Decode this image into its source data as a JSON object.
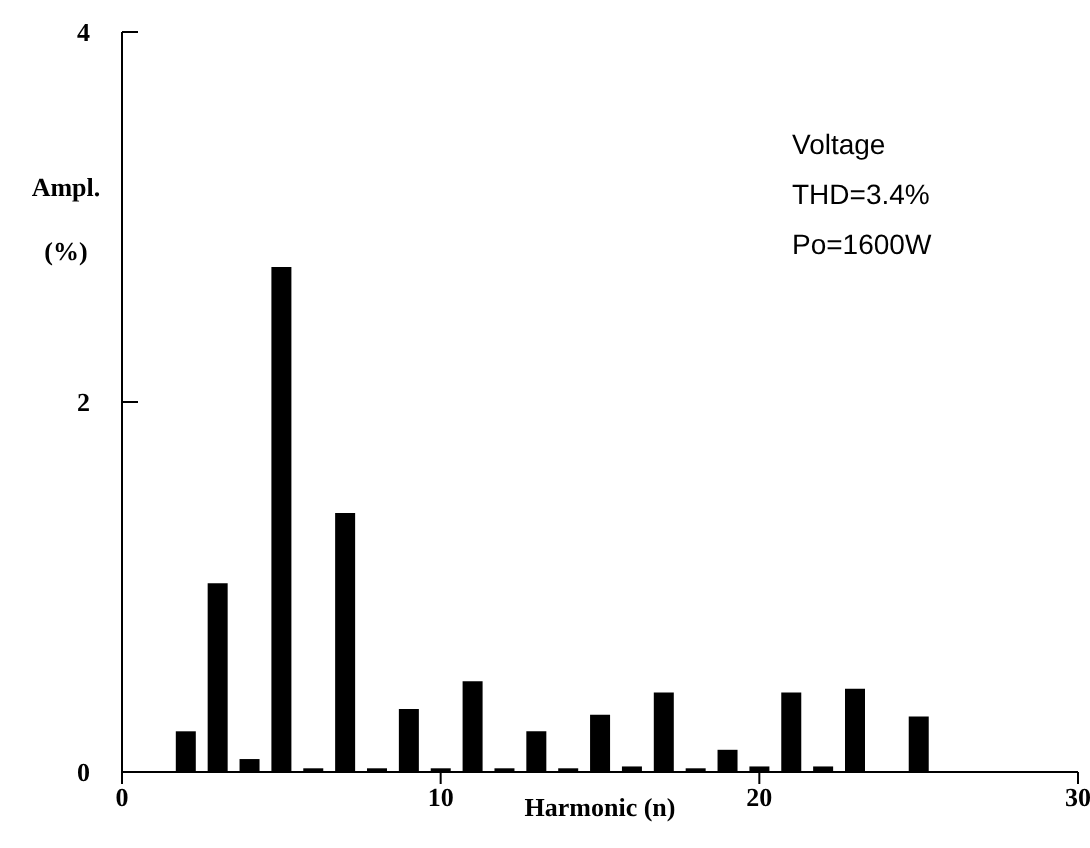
{
  "chart_data": {
    "type": "bar",
    "xlabel": "Harmonic (n)",
    "ylabel": "Ampl. (%)",
    "annotations": [
      "Voltage",
      "THD=3.4%",
      "Po=1600W"
    ],
    "x": [
      2,
      3,
      4,
      5,
      6,
      7,
      8,
      9,
      10,
      11,
      12,
      13,
      14,
      15,
      16,
      17,
      18,
      19,
      20,
      21,
      22,
      23,
      25
    ],
    "values": [
      0.22,
      1.02,
      0.07,
      2.73,
      0.02,
      1.4,
      0.02,
      0.34,
      0.02,
      0.49,
      0.02,
      0.22,
      0.02,
      0.31,
      0.03,
      0.43,
      0.02,
      0.12,
      0.03,
      0.43,
      0.03,
      0.45,
      0.3
    ],
    "color": "#000000",
    "xlim": [
      0,
      30
    ],
    "xticks": [
      0,
      10,
      20,
      30
    ],
    "ylim": [
      0,
      4
    ],
    "yticks": [
      0,
      2,
      4
    ],
    "grid": false,
    "legend": false
  }
}
